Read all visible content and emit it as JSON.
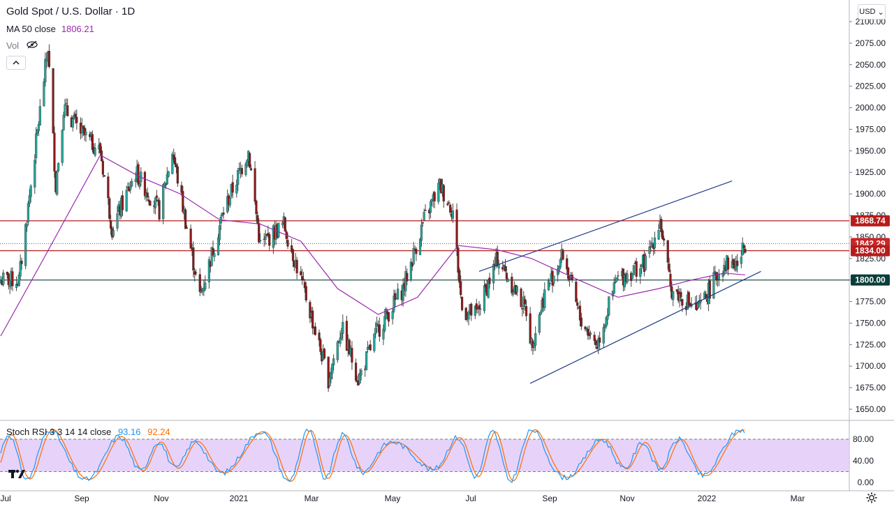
{
  "header": {
    "title": "Gold Spot / U.S. Dollar · 1D",
    "ma_label": "MA 50 close",
    "ma_value": "1806.21",
    "vol_label": "Vol",
    "currency": "USD"
  },
  "colors": {
    "up": "#26a69a",
    "down": "#8b1a1a",
    "candle_wick": "#3a3a3a",
    "ma": "#9c27b0",
    "trendline": "#1e3a8a",
    "resistance": "#b71c1c",
    "support": "#0b3d3a",
    "stoch_k": "#2196f3",
    "stoch_d": "#ff6d00",
    "stoch_band": "#e1c8f7"
  },
  "price_axis": {
    "ticks": [
      "2100.00",
      "2075.00",
      "2050.00",
      "2025.00",
      "2000.00",
      "1975.00",
      "1950.00",
      "1925.00",
      "1900.00",
      "1875.00",
      "1850.00",
      "1825.00",
      "1800.00",
      "1775.00",
      "1750.00",
      "1725.00",
      "1700.00",
      "1675.00",
      "1650.00"
    ]
  },
  "stoch_axis": {
    "ticks": [
      "80.00",
      "40.00",
      "0.00"
    ]
  },
  "time_axis": {
    "labels": [
      "Jul",
      "Sep",
      "Nov",
      "2021",
      "Mar",
      "May",
      "Jul",
      "Sep",
      "Nov",
      "2022",
      "Mar"
    ]
  },
  "price_labels": [
    {
      "text": "1868.74",
      "bg": "#b71c1c"
    },
    {
      "text": "1842.29",
      "bg": "#c62828"
    },
    {
      "text": "1834.00",
      "bg": "#b71c1c"
    },
    {
      "text": "1800.00",
      "bg": "#0b3d3a"
    }
  ],
  "stoch": {
    "label": "Stoch RSI 3 3 14 14 close",
    "k": "93.16",
    "d": "92.24"
  },
  "chart_data": {
    "type": "candlestick",
    "title": "Gold Spot / U.S. Dollar · 1D",
    "x_labels": [
      "Jul",
      "Sep",
      "Nov",
      "2021",
      "Mar",
      "May",
      "Jul",
      "Sep",
      "Nov",
      "2022",
      "Mar"
    ],
    "y_range": [
      1640,
      2110
    ],
    "price_path": [
      [
        "2020-07-15",
        1800
      ],
      [
        "2020-08-06",
        2070
      ],
      [
        "2020-08-12",
        1910
      ],
      [
        "2020-08-18",
        2000
      ],
      [
        "2020-09-01",
        1970
      ],
      [
        "2020-09-15",
        1950
      ],
      [
        "2020-09-24",
        1860
      ],
      [
        "2020-10-12",
        1925
      ],
      [
        "2020-10-30",
        1880
      ],
      [
        "2020-11-09",
        1950
      ],
      [
        "2020-11-30",
        1780
      ],
      [
        "2020-12-18",
        1880
      ],
      [
        "2021-01-06",
        1950
      ],
      [
        "2021-01-15",
        1840
      ],
      [
        "2021-02-02",
        1865
      ],
      [
        "2021-02-19",
        1780
      ],
      [
        "2021-03-08",
        1685
      ],
      [
        "2021-03-18",
        1745
      ],
      [
        "2021-03-31",
        1685
      ],
      [
        "2021-04-14",
        1740
      ],
      [
        "2021-05-04",
        1790
      ],
      [
        "2021-05-20",
        1870
      ],
      [
        "2021-06-01",
        1910
      ],
      [
        "2021-06-11",
        1880
      ],
      [
        "2021-06-18",
        1765
      ],
      [
        "2021-06-29",
        1760
      ],
      [
        "2021-07-15",
        1825
      ],
      [
        "2021-08-06",
        1765
      ],
      [
        "2021-08-10",
        1725
      ],
      [
        "2021-08-20",
        1785
      ],
      [
        "2021-09-03",
        1830
      ],
      [
        "2021-09-16",
        1755
      ],
      [
        "2021-09-29",
        1725
      ],
      [
        "2021-10-14",
        1800
      ],
      [
        "2021-11-05",
        1820
      ],
      [
        "2021-11-16",
        1870
      ],
      [
        "2021-11-24",
        1790
      ],
      [
        "2021-12-15",
        1765
      ],
      [
        "2022-01-04",
        1820
      ],
      [
        "2022-01-14",
        1818
      ],
      [
        "2022-01-20",
        1842
      ]
    ],
    "ma50_path": [
      [
        "2020-07-01",
        1735
      ],
      [
        "2020-08-01",
        1820
      ],
      [
        "2020-09-15",
        1945
      ],
      [
        "2020-10-15",
        1920
      ],
      [
        "2020-11-15",
        1900
      ],
      [
        "2020-12-15",
        1870
      ],
      [
        "2021-01-15",
        1865
      ],
      [
        "2021-02-15",
        1845
      ],
      [
        "2021-03-15",
        1790
      ],
      [
        "2021-04-15",
        1760
      ],
      [
        "2021-05-15",
        1780
      ],
      [
        "2021-06-15",
        1840
      ],
      [
        "2021-07-15",
        1835
      ],
      [
        "2021-08-10",
        1825
      ],
      [
        "2021-09-15",
        1800
      ],
      [
        "2021-10-15",
        1780
      ],
      [
        "2021-11-15",
        1790
      ],
      [
        "2021-12-10",
        1800
      ],
      [
        "2022-01-04",
        1808
      ],
      [
        "2022-01-20",
        1806
      ]
    ],
    "horizontal_levels": [
      1868.74,
      1834.0,
      1800.0
    ],
    "last_price": 1842.29,
    "channel": {
      "upper": [
        [
          "2021-07-01",
          1810
        ],
        [
          "2022-01-10",
          1915
        ]
      ],
      "lower": [
        [
          "2021-08-09",
          1680
        ],
        [
          "2022-02-01",
          1810
        ]
      ]
    },
    "stoch_rsi": {
      "k": 93.16,
      "d": 92.24,
      "range": [
        0,
        100
      ],
      "band": [
        20,
        80
      ]
    }
  }
}
